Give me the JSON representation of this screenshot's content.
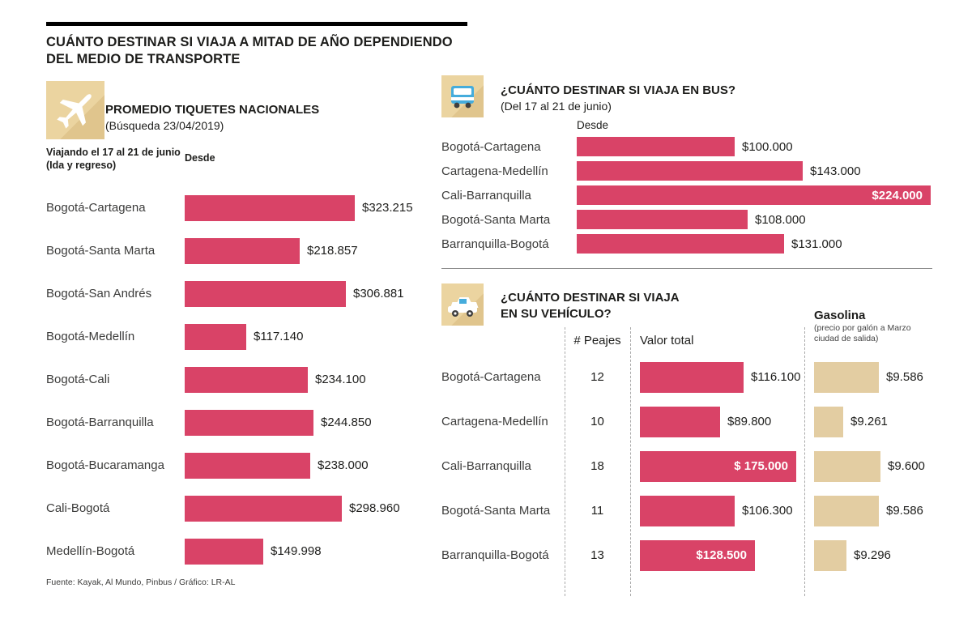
{
  "colors": {
    "accent": "#D94367",
    "tan": "#EBD4A0",
    "gastan": "#E3CDA2",
    "title_bar": "#000000"
  },
  "header": {
    "title_line1": "CUÁNTO DESTINAR SI VIAJA A MITAD DE AÑO DEPENDIENDO",
    "title_line2": "DEL MEDIO DE TRANSPORTE"
  },
  "flights": {
    "icon": "airplane-icon",
    "title": "PROMEDIO TIQUETES NACIONALES",
    "subtitle": "(Búsqueda 23/04/2019)",
    "note1": "Viajando el 17 al 21 de junio",
    "note2": "(Ida y regreso)",
    "desde": "Desde",
    "rows": [
      {
        "label": "Bogotá-Cartagena",
        "value": 323215,
        "display": "$323.215"
      },
      {
        "label": "Bogotá-Santa Marta",
        "value": 218857,
        "display": "$218.857"
      },
      {
        "label": "Bogotá-San Andrés",
        "value": 306881,
        "display": "$306.881"
      },
      {
        "label": "Bogotá-Medellín",
        "value": 117140,
        "display": "$117.140"
      },
      {
        "label": "Bogotá-Cali",
        "value": 234100,
        "display": "$234.100"
      },
      {
        "label": "Bogotá-Barranquilla",
        "value": 244850,
        "display": "$244.850"
      },
      {
        "label": "Bogotá-Bucaramanga",
        "value": 238000,
        "display": "$238.000"
      },
      {
        "label": "Cali-Bogotá",
        "value": 298960,
        "display": "$298.960"
      },
      {
        "label": "Medellín-Bogotá",
        "value": 149998,
        "display": "$149.998"
      }
    ],
    "source": "Fuente: Kayak, Al Mundo, Pinbus / Gráfico: LR-AL"
  },
  "bus": {
    "icon": "bus-icon",
    "title": "¿CUÁNTO DESTINAR SI VIAJA EN BUS?",
    "subtitle": "(Del 17 al 21 de junio)",
    "desde": "Desde",
    "rows": [
      {
        "label": "Bogotá-Cartagena",
        "value": 100000,
        "display": "$100.000"
      },
      {
        "label": "Cartagena-Medellín",
        "value": 143000,
        "display": "$143.000"
      },
      {
        "label": "Cali-Barranquilla",
        "value": 224000,
        "display": "$224.000",
        "inside": true
      },
      {
        "label": "Bogotá-Santa Marta",
        "value": 108000,
        "display": "$108.000"
      },
      {
        "label": "Barranquilla-Bogotá",
        "value": 131000,
        "display": "$131.000"
      }
    ]
  },
  "vehicle": {
    "icon": "car-icon",
    "title_line1": "¿CUÁNTO DESTINAR SI VIAJA",
    "title_line2": "EN SU VEHÍCULO?",
    "col_peajes": "# Peajes",
    "col_valor": "Valor total",
    "gas_title": "Gasolina",
    "gas_note1": "(precio por galón a Marzo",
    "gas_note2": "ciudad de salida)",
    "rows": [
      {
        "label": "Bogotá-Cartagena",
        "peajes": "12",
        "valor": 116100,
        "valor_display": "$116.100",
        "gas": 9586,
        "gas_display": "$9.586"
      },
      {
        "label": "Cartagena-Medellín",
        "peajes": "10",
        "valor": 89800,
        "valor_display": "$89.800",
        "gas": 9261,
        "gas_display": "$9.261"
      },
      {
        "label": "Cali-Barranquilla",
        "peajes": "18",
        "valor": 175000,
        "valor_display": "$ 175.000",
        "inside": true,
        "gas": 9600,
        "gas_display": "$9.600"
      },
      {
        "label": "Bogotá-Santa Marta",
        "peajes": "11",
        "valor": 106300,
        "valor_display": "$106.300",
        "gas": 9586,
        "gas_display": "$9.586"
      },
      {
        "label": "Barranquilla-Bogotá",
        "peajes": "13",
        "valor": 128500,
        "valor_display": "$128.500",
        "inside": true,
        "gas": 9296,
        "gas_display": "$9.296"
      }
    ]
  },
  "chart_data": [
    {
      "type": "bar",
      "orientation": "horizontal",
      "title": "PROMEDIO TIQUETES NACIONALES (Búsqueda 23/04/2019)",
      "note": "Viajando el 17 al 21 de junio (Ida y regreso)",
      "xlabel": "Desde",
      "categories": [
        "Bogotá-Cartagena",
        "Bogotá-Santa Marta",
        "Bogotá-San Andrés",
        "Bogotá-Medellín",
        "Bogotá-Cali",
        "Bogotá-Barranquilla",
        "Bogotá-Bucaramanga",
        "Cali-Bogotá",
        "Medellín-Bogotá"
      ],
      "values": [
        323215,
        218857,
        306881,
        117140,
        234100,
        244850,
        238000,
        298960,
        149998
      ],
      "value_labels": [
        "$323.215",
        "$218.857",
        "$306.881",
        "$117.140",
        "$234.100",
        "$244.850",
        "$238.000",
        "$298.960",
        "$149.998"
      ],
      "xlim": [
        0,
        323215
      ],
      "grid": false,
      "bar_color": "#D94367"
    },
    {
      "type": "bar",
      "orientation": "horizontal",
      "title": "¿CUÁNTO DESTINAR SI VIAJA EN BUS? (Del 17 al 21 de junio)",
      "xlabel": "Desde",
      "categories": [
        "Bogotá-Cartagena",
        "Cartagena-Medellín",
        "Cali-Barranquilla",
        "Bogotá-Santa Marta",
        "Barranquilla-Bogotá"
      ],
      "values": [
        100000,
        143000,
        224000,
        108000,
        131000
      ],
      "value_labels": [
        "$100.000",
        "$143.000",
        "$224.000",
        "$108.000",
        "$131.000"
      ],
      "xlim": [
        0,
        224000
      ],
      "grid": false,
      "bar_color": "#D94367"
    },
    {
      "type": "bar",
      "orientation": "horizontal",
      "title": "¿CUÁNTO DESTINAR SI VIAJA EN SU VEHÍCULO?",
      "categories": [
        "Bogotá-Cartagena",
        "Cartagena-Medellín",
        "Cali-Barranquilla",
        "Bogotá-Santa Marta",
        "Barranquilla-Bogotá"
      ],
      "series": [
        {
          "name": "# Peajes",
          "values": [
            12,
            10,
            18,
            11,
            13
          ]
        },
        {
          "name": "Valor total",
          "values": [
            116100,
            89800,
            175000,
            106300,
            128500
          ],
          "value_labels": [
            "$116.100",
            "$89.800",
            "$ 175.000",
            "$106.300",
            "$128.500"
          ],
          "bar_color": "#D94367"
        },
        {
          "name": "Gasolina (precio por galón a Marzo ciudad de salida)",
          "values": [
            9586,
            9261,
            9600,
            9586,
            9296
          ],
          "value_labels": [
            "$9.586",
            "$9.261",
            "$9.600",
            "$9.586",
            "$9.296"
          ],
          "bar_color": "#E3CDA2"
        }
      ],
      "grid": false,
      "legend_position": "column-headers"
    }
  ]
}
